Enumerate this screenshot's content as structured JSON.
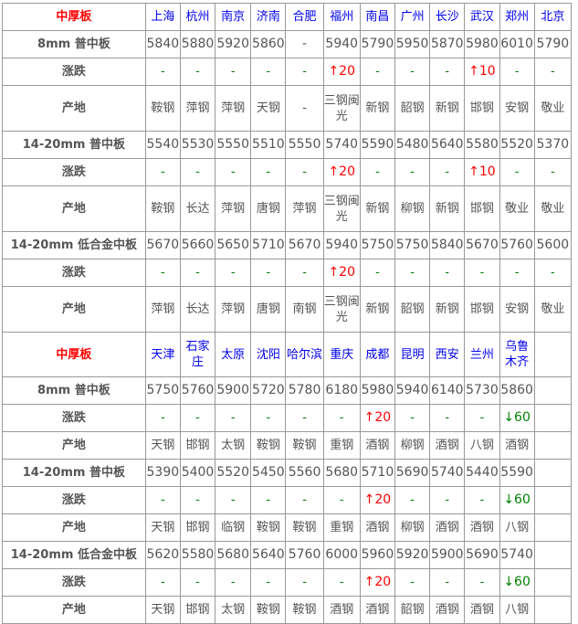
{
  "sections": [
    {
      "title": "中厚板",
      "cities": [
        "上海",
        "杭州",
        "南京",
        "济南",
        "合肥",
        "福州",
        "南昌",
        "广州",
        "长沙",
        "武汉",
        "郑州",
        "北京"
      ],
      "products": [
        {
          "name": "8mm 普中板",
          "prices": [
            "5840",
            "5880",
            "5920",
            "5860",
            "-",
            "5940",
            "5790",
            "5950",
            "5870",
            "5980",
            "6010",
            "5790"
          ],
          "change_label": "涨跌",
          "changes": [
            "-",
            "-",
            "-",
            "-",
            "-",
            "↑20",
            "-",
            "-",
            "-",
            "↑10",
            "-",
            "-"
          ],
          "origin_label": "产地",
          "origins": [
            "鞍钢",
            "萍钢",
            "萍钢",
            "天钢",
            "-",
            "三钢闽光",
            "新钢",
            "韶钢",
            "新钢",
            "邯钢",
            "安钢",
            "敬业"
          ]
        },
        {
          "name": "14-20mm 普中板",
          "prices": [
            "5540",
            "5530",
            "5550",
            "5510",
            "5550",
            "5740",
            "5590",
            "5480",
            "5640",
            "5580",
            "5520",
            "5370"
          ],
          "change_label": "涨跌",
          "changes": [
            "-",
            "-",
            "-",
            "-",
            "-",
            "↑20",
            "-",
            "-",
            "-",
            "↑10",
            "-",
            "-"
          ],
          "origin_label": "产地",
          "origins": [
            "鞍钢",
            "长达",
            "萍钢",
            "唐钢",
            "萍钢",
            "三钢闽光",
            "新钢",
            "柳钢",
            "新钢",
            "邯钢",
            "敬业",
            "敬业"
          ]
        },
        {
          "name": "14-20mm 低合金中板",
          "prices": [
            "5670",
            "5660",
            "5650",
            "5710",
            "5670",
            "5940",
            "5750",
            "5750",
            "5840",
            "5670",
            "5760",
            "5600"
          ],
          "change_label": "涨跌",
          "changes": [
            "-",
            "-",
            "-",
            "-",
            "-",
            "↑20",
            "-",
            "-",
            "-",
            "-",
            "-",
            "-"
          ],
          "origin_label": "产地",
          "origins": [
            "萍钢",
            "长达",
            "萍钢",
            "唐钢",
            "南钢",
            "三钢闽光",
            "新钢",
            "韶钢",
            "新钢",
            "邯钢",
            "安钢",
            "敬业"
          ]
        }
      ]
    },
    {
      "title": "中厚板",
      "cities": [
        "天津",
        "石家庄",
        "太原",
        "沈阳",
        "哈尔滨",
        "重庆",
        "成都",
        "昆明",
        "西安",
        "兰州",
        "乌鲁木齐",
        ""
      ],
      "products": [
        {
          "name": "8mm 普中板",
          "prices": [
            "5750",
            "5760",
            "5900",
            "5720",
            "5780",
            "6180",
            "5980",
            "5940",
            "6140",
            "5730",
            "5860",
            ""
          ],
          "change_label": "涨跌",
          "changes": [
            "-",
            "-",
            "-",
            "-",
            "-",
            "-",
            "↑20",
            "-",
            "-",
            "-",
            "↓60",
            ""
          ],
          "origin_label": "产地",
          "origins": [
            "天钢",
            "邯钢",
            "太钢",
            "鞍钢",
            "鞍钢",
            "重钢",
            "酒钢",
            "柳钢",
            "酒钢",
            "八钢",
            "酒钢",
            ""
          ]
        },
        {
          "name": "14-20mm 普中板",
          "prices": [
            "5390",
            "5400",
            "5520",
            "5450",
            "5560",
            "5680",
            "5710",
            "5690",
            "5740",
            "5440",
            "5590",
            ""
          ],
          "change_label": "涨跌",
          "changes": [
            "-",
            "-",
            "-",
            "-",
            "-",
            "-",
            "↑20",
            "-",
            "-",
            "-",
            "↓60",
            ""
          ],
          "origin_label": "产地",
          "origins": [
            "天钢",
            "邯钢",
            "临钢",
            "鞍钢",
            "鞍钢",
            "重钢",
            "酒钢",
            "柳钢",
            "酒钢",
            "酒钢",
            "八钢",
            ""
          ]
        },
        {
          "name": "14-20mm 低合金中板",
          "prices": [
            "5620",
            "5580",
            "5680",
            "5640",
            "5760",
            "6000",
            "5960",
            "5920",
            "5900",
            "5690",
            "5740",
            ""
          ],
          "change_label": "涨跌",
          "changes": [
            "-",
            "-",
            "-",
            "-",
            "-",
            "-",
            "↑20",
            "-",
            "-",
            "-",
            "↓60",
            ""
          ],
          "origin_label": "产地",
          "origins": [
            "天钢",
            "邯钢",
            "太钢",
            "鞍钢",
            "鞍钢",
            "酒钢",
            "酒钢",
            "韶钢",
            "酒钢",
            "酒钢",
            "八钢",
            ""
          ]
        }
      ]
    }
  ],
  "colors": {
    "header_city": "#0000ee",
    "title": "#ff0000",
    "rise": "#ff0000",
    "fall": "#008000"
  }
}
